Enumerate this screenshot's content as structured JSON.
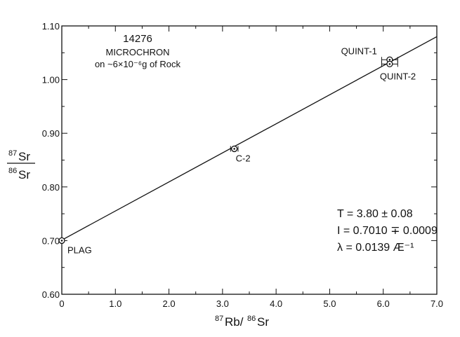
{
  "chart_data": {
    "type": "scatter",
    "title": "14276",
    "subtitle": "MICROCHRON",
    "subtitle2": "on ~6×10⁻⁶g of Rock",
    "xlabel_sup1": "87",
    "xlabel_el1": "Rb/",
    "xlabel_sup2": "86",
    "xlabel_el2": "Sr",
    "ylabel_num_sup": "87",
    "ylabel_num_el": "Sr",
    "ylabel_den_sup": "86",
    "ylabel_den_el": "Sr",
    "xlim": [
      0,
      7.0
    ],
    "ylim": [
      0.6,
      1.1
    ],
    "xticks": [
      "0",
      "1.0",
      "2.0",
      "3.0",
      "4.0",
      "5.0",
      "6.0",
      "7.0"
    ],
    "yticks": [
      "0.60",
      "0.70",
      "0.80",
      "0.90",
      "1.00",
      "1.10"
    ],
    "points": [
      {
        "label": "PLAG",
        "x": 0.0,
        "y": 0.7,
        "xerr": 0.0
      },
      {
        "label": "C-2",
        "x": 3.22,
        "y": 0.871,
        "xerr": 0.07
      },
      {
        "label": "QUINT-1",
        "x": 6.12,
        "y": 1.037,
        "xerr": 0.15
      },
      {
        "label": "QUINT-2",
        "x": 6.12,
        "y": 1.029,
        "xerr": 0.15
      }
    ],
    "fit_line": {
      "x": [
        0,
        7.0
      ],
      "y": [
        0.701,
        1.08
      ]
    },
    "annotations": [
      "T = 3.80 ± 0.08",
      "I = 0.7010 ∓ 0.0009",
      "λ = 0.0139 Æ⁻¹"
    ]
  }
}
